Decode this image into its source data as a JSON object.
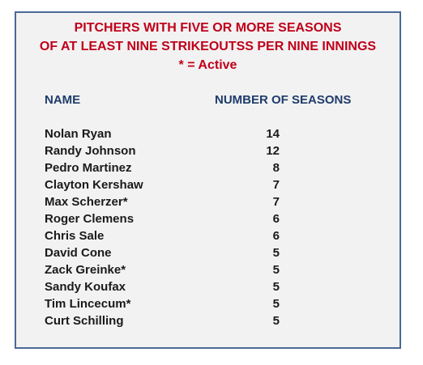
{
  "title": {
    "line1": "PITCHERS WITH FIVE OR MORE SEASONS",
    "line2": "OF AT LEAST NINE STRIKEOUTSS PER NINE INNINGS",
    "line3": "* = Active"
  },
  "columns": {
    "name": "NAME",
    "seasons": "NUMBER OF SEASONS"
  },
  "rows": [
    {
      "name": "Nolan Ryan",
      "seasons": "14"
    },
    {
      "name": "Randy Johnson",
      "seasons": "12"
    },
    {
      "name": "Pedro Martinez",
      "seasons": "8"
    },
    {
      "name": "Clayton Kershaw",
      "seasons": "7"
    },
    {
      "name": "Max Scherzer*",
      "seasons": "7"
    },
    {
      "name": "Roger Clemens",
      "seasons": "6"
    },
    {
      "name": "Chris Sale",
      "seasons": "6"
    },
    {
      "name": "David Cone",
      "seasons": "5"
    },
    {
      "name": "Zack Greinke*",
      "seasons": "5"
    },
    {
      "name": "Sandy Koufax",
      "seasons": "5"
    },
    {
      "name": "Tim Lincecum*",
      "seasons": "5"
    },
    {
      "name": "Curt Schilling",
      "seasons": "5"
    }
  ],
  "colors": {
    "title": "#c0001a",
    "header": "#1f3c6b",
    "border": "#4a6a96",
    "background": "#f2f2f2"
  }
}
